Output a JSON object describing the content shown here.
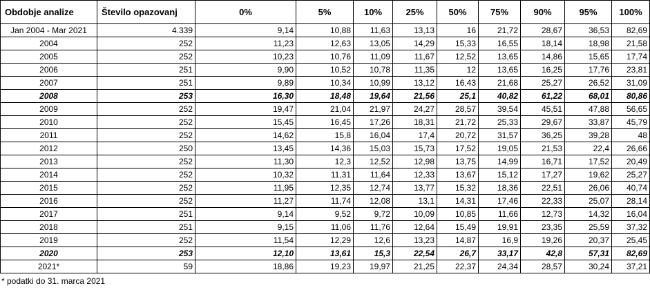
{
  "headers": [
    "Obdobje analize",
    "Število opazovanj",
    "0%",
    "5%",
    "10%",
    "25%",
    "50%",
    "75%",
    "90%",
    "95%",
    "100%"
  ],
  "rows": [
    {
      "period": "Jan 2004 - Mar 2021",
      "n": "4.339",
      "v": [
        "9,14",
        "10,88",
        "11,63",
        "13,13",
        "16",
        "21,72",
        "28,67",
        "36,53",
        "82,69"
      ],
      "highlight": false
    },
    {
      "period": "2004",
      "n": "252",
      "v": [
        "11,23",
        "12,63",
        "13,05",
        "14,29",
        "15,33",
        "16,55",
        "18,14",
        "18,98",
        "21,58"
      ],
      "highlight": false
    },
    {
      "period": "2005",
      "n": "252",
      "v": [
        "10,23",
        "10,76",
        "11,09",
        "11,67",
        "12,52",
        "13,65",
        "14,86",
        "15,65",
        "17,74"
      ],
      "highlight": false
    },
    {
      "period": "2006",
      "n": "251",
      "v": [
        "9,90",
        "10,52",
        "10,78",
        "11,35",
        "12",
        "13,65",
        "16,25",
        "17,76",
        "23,81"
      ],
      "highlight": false
    },
    {
      "period": "2007",
      "n": "251",
      "v": [
        "9,89",
        "10,34",
        "10,99",
        "13,12",
        "16,43",
        "21,68",
        "25,27",
        "26,52",
        "31,09"
      ],
      "highlight": false
    },
    {
      "period": "2008",
      "n": "253",
      "v": [
        "16,30",
        "18,48",
        "19,64",
        "21,56",
        "25,1",
        "40,82",
        "61,22",
        "68,01",
        "80,86"
      ],
      "highlight": true
    },
    {
      "period": "2009",
      "n": "252",
      "v": [
        "19,47",
        "21,04",
        "21,97",
        "24,27",
        "28,57",
        "39,54",
        "45,51",
        "47,88",
        "56,65"
      ],
      "highlight": false
    },
    {
      "period": "2010",
      "n": "252",
      "v": [
        "15,45",
        "16,45",
        "17,26",
        "18,31",
        "21,72",
        "25,33",
        "29,67",
        "33,87",
        "45,79"
      ],
      "highlight": false
    },
    {
      "period": "2011",
      "n": "252",
      "v": [
        "14,62",
        "15,8",
        "16,04",
        "17,4",
        "20,72",
        "31,57",
        "36,25",
        "39,28",
        "48"
      ],
      "highlight": false
    },
    {
      "period": "2012",
      "n": "250",
      "v": [
        "13,45",
        "14,36",
        "15,03",
        "15,73",
        "17,52",
        "19,05",
        "21,53",
        "22,4",
        "26,66"
      ],
      "highlight": false
    },
    {
      "period": "2013",
      "n": "252",
      "v": [
        "11,30",
        "12,3",
        "12,52",
        "12,98",
        "13,75",
        "14,99",
        "16,71",
        "17,52",
        "20,49"
      ],
      "highlight": false
    },
    {
      "period": "2014",
      "n": "252",
      "v": [
        "10,32",
        "11,31",
        "11,64",
        "12,33",
        "13,67",
        "15,12",
        "17,27",
        "19,62",
        "25,27"
      ],
      "highlight": false
    },
    {
      "period": "2015",
      "n": "252",
      "v": [
        "11,95",
        "12,35",
        "12,74",
        "13,77",
        "15,32",
        "18,36",
        "22,51",
        "26,06",
        "40,74"
      ],
      "highlight": false
    },
    {
      "period": "2016",
      "n": "252",
      "v": [
        "11,27",
        "11,74",
        "12,08",
        "13,1",
        "14,31",
        "17,46",
        "22,33",
        "25,07",
        "28,14"
      ],
      "highlight": false
    },
    {
      "period": "2017",
      "n": "251",
      "v": [
        "9,14",
        "9,52",
        "9,72",
        "10,09",
        "10,85",
        "11,66",
        "12,73",
        "14,32",
        "16,04"
      ],
      "highlight": false
    },
    {
      "period": "2018",
      "n": "251",
      "v": [
        "9,15",
        "11,06",
        "11,76",
        "12,64",
        "15,49",
        "19,91",
        "23,35",
        "25,59",
        "37,32"
      ],
      "highlight": false
    },
    {
      "period": "2019",
      "n": "252",
      "v": [
        "11,54",
        "12,29",
        "12,6",
        "13,23",
        "14,87",
        "16,9",
        "19,26",
        "20,37",
        "25,45"
      ],
      "highlight": false
    },
    {
      "period": "2020",
      "n": "253",
      "v": [
        "12,10",
        "13,61",
        "15,3",
        "22,54",
        "26,7",
        "33,17",
        "42,8",
        "57,31",
        "82,69"
      ],
      "highlight": true
    },
    {
      "period": "2021*",
      "n": "59",
      "v": [
        "18,86",
        "19,23",
        "19,97",
        "21,25",
        "22,37",
        "24,34",
        "28,57",
        "30,24",
        "37,21"
      ],
      "highlight": false
    }
  ],
  "footnote": "* podatki do 31. marca 2021"
}
